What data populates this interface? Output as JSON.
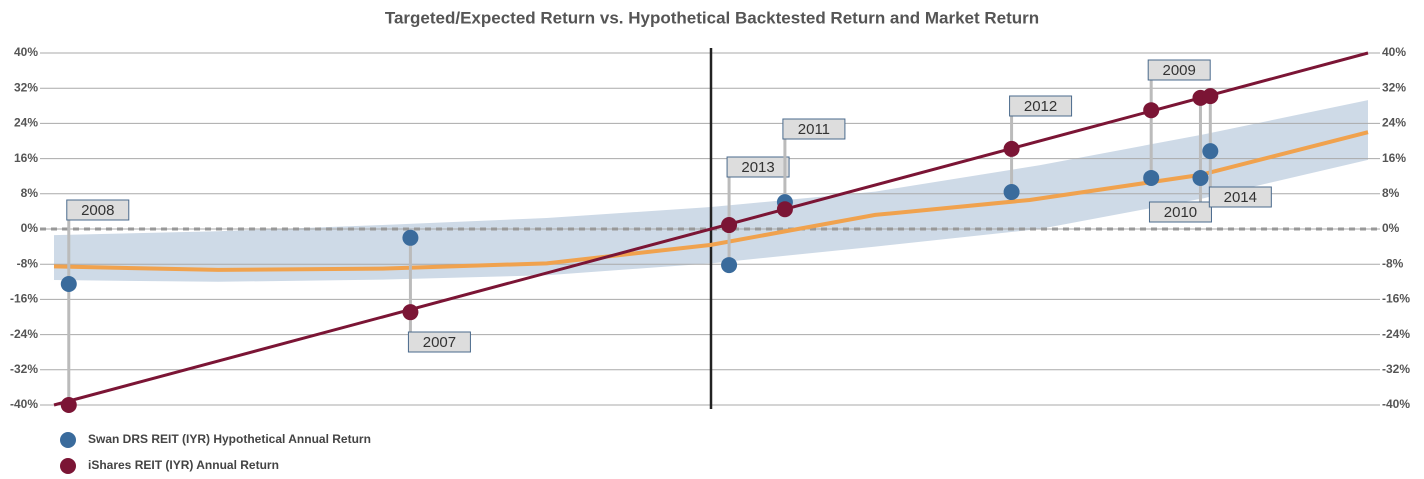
{
  "chart_data": {
    "type": "scatter",
    "title": "Targeted/Expected Return vs. Hypothetical Backtested Return and Market Return",
    "xlim": [
      -40,
      40
    ],
    "ylim": [
      -40,
      40
    ],
    "yticks": [
      {
        "value": 40,
        "label": "40%"
      },
      {
        "value": 32,
        "label": "32%"
      },
      {
        "value": 24,
        "label": "24%"
      },
      {
        "value": 16,
        "label": "16%"
      },
      {
        "value": 8,
        "label": "8%"
      },
      {
        "value": 0,
        "label": "0%"
      },
      {
        "value": -8,
        "label": "-8%"
      },
      {
        "value": -16,
        "label": "-16%"
      },
      {
        "value": -24,
        "label": "-24%"
      },
      {
        "value": -32,
        "label": "-32%"
      },
      {
        "value": -40,
        "label": "-40%"
      }
    ],
    "y2lim": [
      -40,
      40
    ],
    "y2ticks": [
      {
        "value": 40,
        "label": "40%"
      },
      {
        "value": 32,
        "label": "32%"
      },
      {
        "value": 24,
        "label": "24%"
      },
      {
        "value": 16,
        "label": "16%"
      },
      {
        "value": 8,
        "label": "8%"
      },
      {
        "value": 0,
        "label": "0%"
      },
      {
        "value": -8,
        "label": "-8%"
      },
      {
        "value": -16,
        "label": "-16%"
      },
      {
        "value": -24,
        "label": "-24%"
      },
      {
        "value": -32,
        "label": "-32%"
      },
      {
        "value": -40,
        "label": "-40%"
      }
    ],
    "grid": true,
    "zero_line_y": 0,
    "vline_x": 0,
    "x": [
      -39.1,
      -18.3,
      1.1,
      4.5,
      18.3,
      26.8,
      29.8,
      30.4
    ],
    "labels": [
      "2008",
      "2007",
      "2013",
      "2011",
      "2012",
      "2009",
      "2010",
      "2014"
    ],
    "series": [
      {
        "name": "Swan DRS REIT (IYR) Hypothetical Annual Return",
        "color": "#3a6b9c",
        "values": [
          -12.5,
          -2.0,
          -8.2,
          6.1,
          8.4,
          11.6,
          11.6,
          17.7
        ]
      },
      {
        "name": "iShares REIT (IYR) Annual Return",
        "color": "#7b1535",
        "values": [
          -40.0,
          -18.9,
          0.9,
          4.5,
          18.2,
          27.0,
          29.8,
          30.2
        ]
      }
    ],
    "trend_line": {
      "color": "#7b1535",
      "x": [
        -40,
        40
      ],
      "values": [
        -40,
        40
      ]
    },
    "curve": {
      "color": "#f0a24e",
      "x": [
        -40,
        -30,
        -20,
        -10,
        0,
        10,
        19.4,
        29.8,
        40
      ],
      "values": [
        -8.5,
        -9.3,
        -9.0,
        -7.8,
        -3.6,
        3.2,
        6.6,
        12.3,
        22.0
      ]
    },
    "band": {
      "color": "#c9d6e4",
      "x": [
        -40,
        -30,
        -20,
        -10,
        0,
        10,
        20,
        30,
        40
      ],
      "upper": [
        -1.4,
        -0.5,
        0.9,
        2.5,
        5.0,
        8.5,
        14.5,
        21.5,
        29.3
      ],
      "lower": [
        -11.6,
        -12.0,
        -11.5,
        -10.5,
        -7.8,
        -4.0,
        0.0,
        7.0,
        15.7
      ]
    }
  }
}
